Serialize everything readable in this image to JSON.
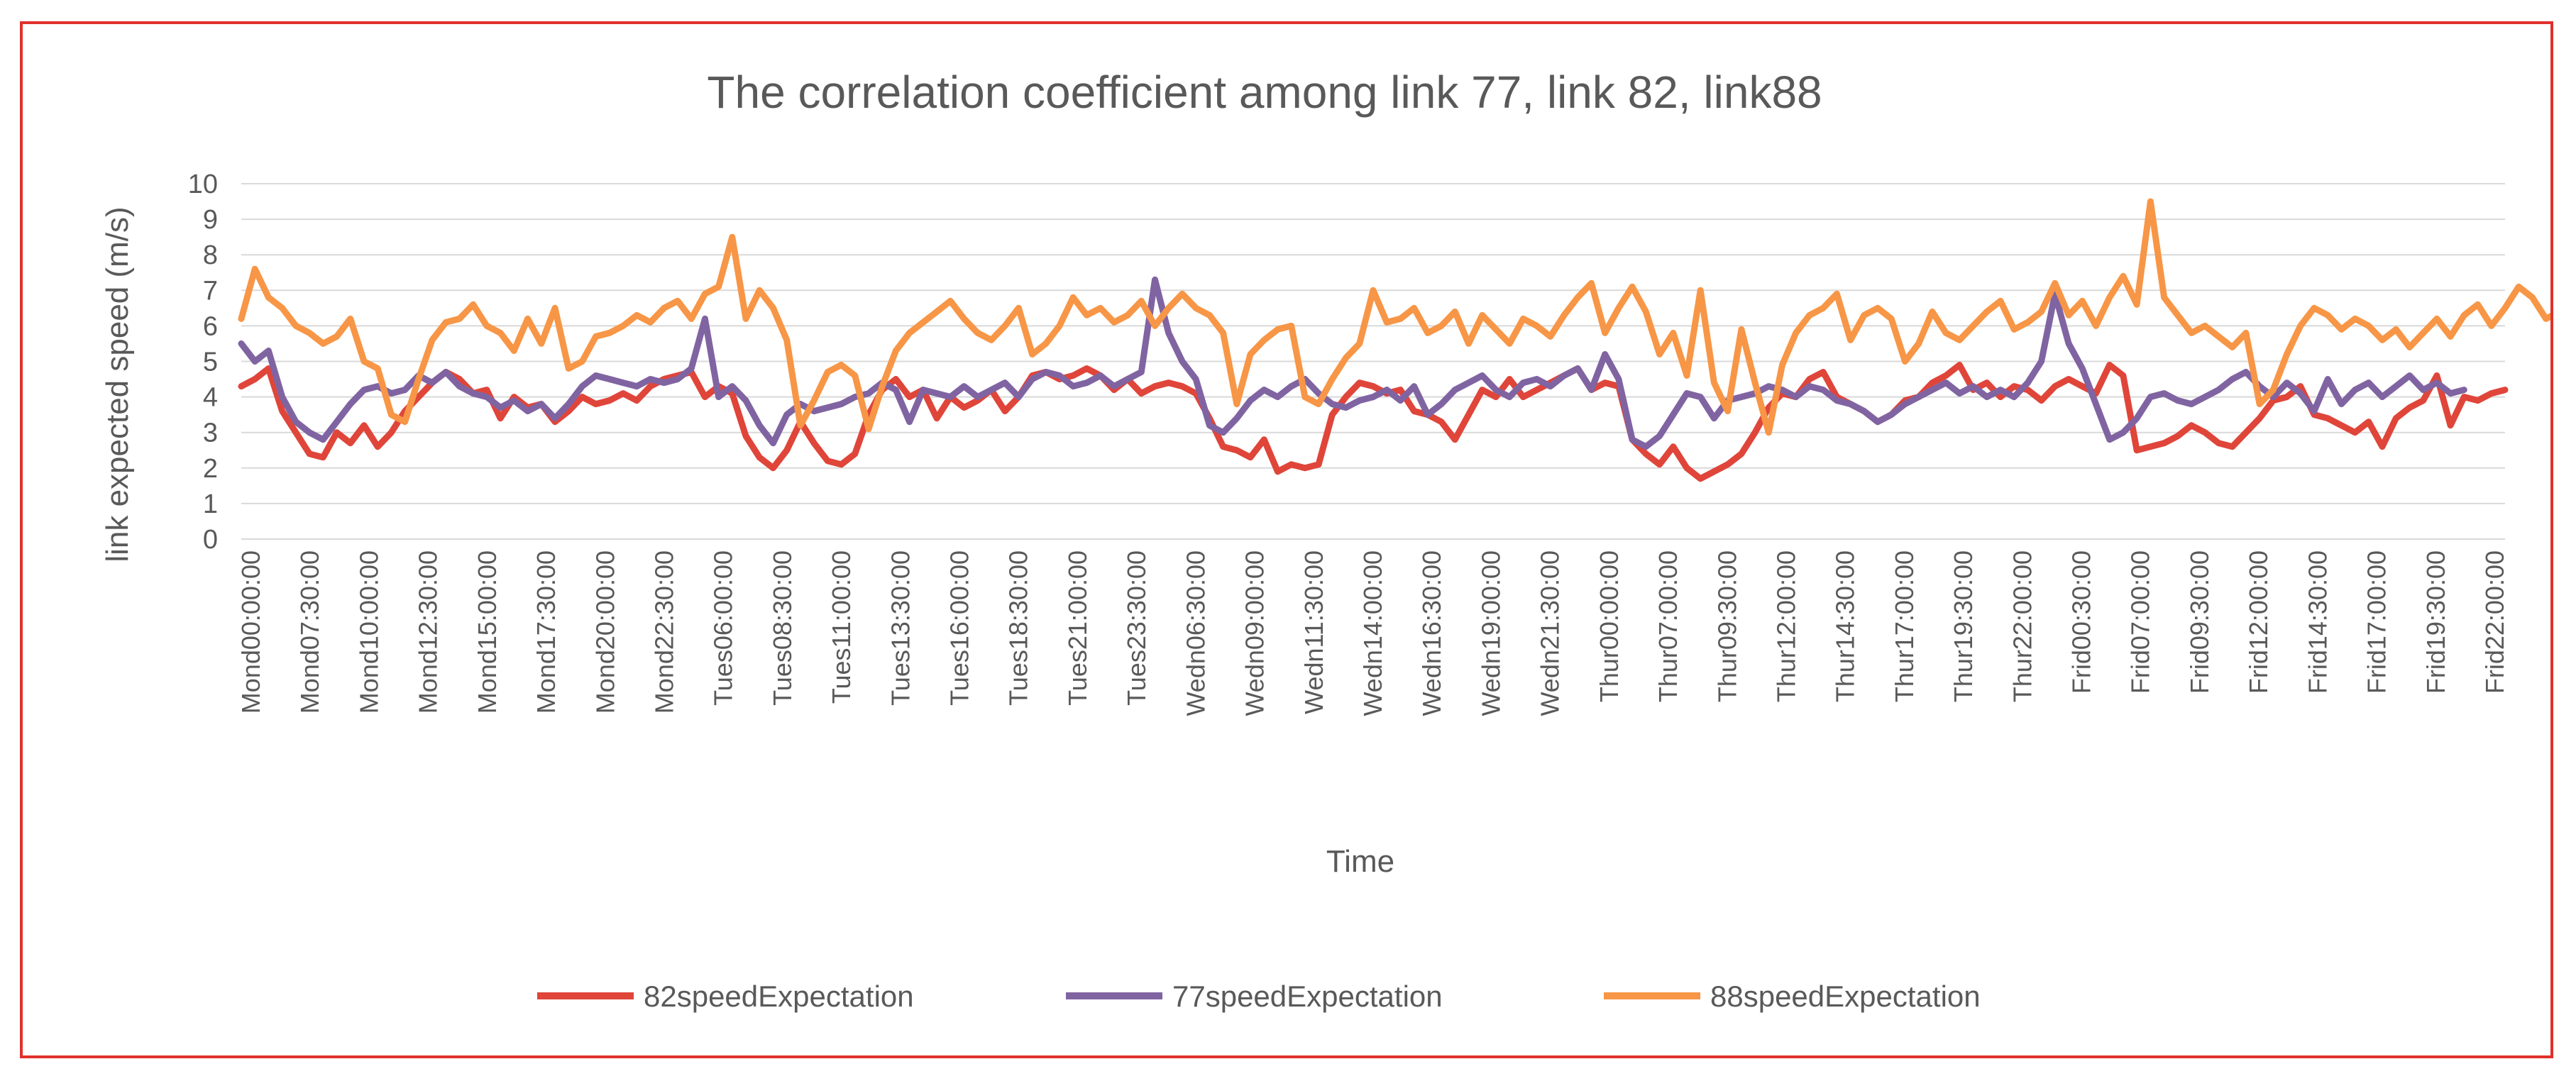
{
  "chart_data": {
    "type": "line",
    "title": "The correlation coefficient among link 77, link 82, link88",
    "xlabel": "Time",
    "ylabel": "link expected speed (m/s)",
    "ylim": [
      0,
      10
    ],
    "yticks": [
      0,
      1,
      2,
      3,
      4,
      5,
      6,
      7,
      8,
      9,
      10
    ],
    "grid": true,
    "legend_position": "bottom",
    "x_tick_labels": [
      "Mond00:00:00",
      "Mond07:30:00",
      "Mond10:00:00",
      "Mond12:30:00",
      "Mond15:00:00",
      "Mond17:30:00",
      "Mond20:00:00",
      "Mond22:30:00",
      "Tues06:00:00",
      "Tues08:30:00",
      "Tues11:00:00",
      "Tues13:30:00",
      "Tues16:00:00",
      "Tues18:30:00",
      "Tues21:00:00",
      "Tues23:30:00",
      "Wedn06:30:00",
      "Wedn09:00:00",
      "Wedn11:30:00",
      "Wedn14:00:00",
      "Wedn16:30:00",
      "Wedn19:00:00",
      "Wedn21:30:00",
      "Thur00:00:00",
      "Thur07:00:00",
      "Thur09:30:00",
      "Thur12:00:00",
      "Thur14:30:00",
      "Thur17:00:00",
      "Thur19:30:00",
      "Thur22:00:00",
      "Frid00:30:00",
      "Frid07:00:00",
      "Frid09:30:00",
      "Frid12:00:00",
      "Frid14:30:00",
      "Frid17:00:00",
      "Frid19:30:00",
      "Frid22:00:00"
    ],
    "series": [
      {
        "name": "82speedExpectation",
        "color": "#e0453a",
        "values": [
          4.3,
          4.5,
          4.8,
          3.6,
          3.0,
          2.4,
          2.3,
          3.0,
          2.7,
          3.2,
          2.6,
          3.0,
          3.6,
          4.0,
          4.4,
          4.7,
          4.5,
          4.1,
          4.2,
          3.4,
          4.0,
          3.7,
          3.8,
          3.3,
          3.6,
          4.0,
          3.8,
          3.9,
          4.1,
          3.9,
          4.3,
          4.5,
          4.6,
          4.7,
          4.0,
          4.3,
          4.1,
          2.9,
          2.3,
          2.0,
          2.5,
          3.3,
          2.7,
          2.2,
          2.1,
          2.4,
          3.5,
          4.2,
          4.5,
          4.0,
          4.2,
          3.4,
          4.0,
          3.7,
          3.9,
          4.2,
          3.6,
          4.0,
          4.6,
          4.7,
          4.5,
          4.6,
          4.8,
          4.6,
          4.2,
          4.5,
          4.1,
          4.3,
          4.4,
          4.3,
          4.1,
          3.4,
          2.6,
          2.5,
          2.3,
          2.8,
          1.9,
          2.1,
          2.0,
          2.1,
          3.5,
          4.0,
          4.4,
          4.3,
          4.1,
          4.2,
          3.6,
          3.5,
          3.3,
          2.8,
          3.5,
          4.2,
          4.0,
          4.5,
          4.0,
          4.2,
          4.4,
          4.6,
          4.8,
          4.2,
          4.4,
          4.3,
          2.8,
          2.4,
          2.1,
          2.6,
          2.0,
          1.7,
          1.9,
          2.1,
          2.4,
          3.0,
          3.7,
          4.1,
          4.0,
          4.5,
          4.7,
          4.0,
          3.8,
          3.6,
          3.3,
          3.5,
          3.9,
          4.0,
          4.4,
          4.6,
          4.9,
          4.2,
          4.4,
          4.0,
          4.3,
          4.2,
          3.9,
          4.3,
          4.5,
          4.3,
          4.1,
          4.9,
          4.6,
          2.5,
          2.6,
          2.7,
          2.9,
          3.2,
          3.0,
          2.7,
          2.6,
          3.0,
          3.4,
          3.9,
          4.0,
          4.3,
          3.5,
          3.4,
          3.2,
          3.0,
          3.3,
          2.6,
          3.4,
          3.7,
          3.9,
          4.6,
          3.2,
          4.0,
          3.9,
          4.1,
          4.2
        ]
      },
      {
        "name": "77speedExpectation",
        "color": "#8064a2",
        "values": [
          5.5,
          5.0,
          5.3,
          4.0,
          3.3,
          3.0,
          2.8,
          3.3,
          3.8,
          4.2,
          4.3,
          4.1,
          4.2,
          4.6,
          4.4,
          4.7,
          4.3,
          4.1,
          4.0,
          3.7,
          3.9,
          3.6,
          3.8,
          3.4,
          3.8,
          4.3,
          4.6,
          4.5,
          4.4,
          4.3,
          4.5,
          4.4,
          4.5,
          4.8,
          6.2,
          4.0,
          4.3,
          3.9,
          3.2,
          2.7,
          3.5,
          3.8,
          3.6,
          3.7,
          3.8,
          4.0,
          4.1,
          4.4,
          4.2,
          3.3,
          4.2,
          4.1,
          4.0,
          4.3,
          4.0,
          4.2,
          4.4,
          4.0,
          4.5,
          4.7,
          4.6,
          4.3,
          4.4,
          4.6,
          4.3,
          4.5,
          4.7,
          7.3,
          5.8,
          5.0,
          4.5,
          3.2,
          3.0,
          3.4,
          3.9,
          4.2,
          4.0,
          4.3,
          4.5,
          4.1,
          3.8,
          3.7,
          3.9,
          4.0,
          4.2,
          3.9,
          4.3,
          3.5,
          3.8,
          4.2,
          4.4,
          4.6,
          4.2,
          4.0,
          4.4,
          4.5,
          4.3,
          4.6,
          4.8,
          4.2,
          5.2,
          4.5,
          2.8,
          2.6,
          2.9,
          3.5,
          4.1,
          4.0,
          3.4,
          3.9,
          4.0,
          4.1,
          4.3,
          4.2,
          4.0,
          4.3,
          4.2,
          3.9,
          3.8,
          3.6,
          3.3,
          3.5,
          3.8,
          4.0,
          4.2,
          4.4,
          4.1,
          4.3,
          4.0,
          4.2,
          4.0,
          4.4,
          5.0,
          6.9,
          5.5,
          4.8,
          3.8,
          2.8,
          3.0,
          3.4,
          4.0,
          4.1,
          3.9,
          3.8,
          4.0,
          4.2,
          4.5,
          4.7,
          4.3,
          4.0,
          4.4,
          4.1,
          3.6,
          4.5,
          3.8,
          4.2,
          4.4,
          4.0,
          4.3,
          4.6,
          4.2,
          4.4,
          4.1,
          4.2
        ]
      },
      {
        "name": "88speedExpectation",
        "color": "#f79646",
        "values": [
          6.2,
          7.6,
          6.8,
          6.5,
          6.0,
          5.8,
          5.5,
          5.7,
          6.2,
          5.0,
          4.8,
          3.5,
          3.3,
          4.5,
          5.6,
          6.1,
          6.2,
          6.6,
          6.0,
          5.8,
          5.3,
          6.2,
          5.5,
          6.5,
          4.8,
          5.0,
          5.7,
          5.8,
          6.0,
          6.3,
          6.1,
          6.5,
          6.7,
          6.2,
          6.9,
          7.1,
          8.5,
          6.2,
          7.0,
          6.5,
          5.6,
          3.2,
          3.9,
          4.7,
          4.9,
          4.6,
          3.1,
          4.3,
          5.3,
          5.8,
          6.1,
          6.4,
          6.7,
          6.2,
          5.8,
          5.6,
          6.0,
          6.5,
          5.2,
          5.5,
          6.0,
          6.8,
          6.3,
          6.5,
          6.1,
          6.3,
          6.7,
          6.0,
          6.5,
          6.9,
          6.5,
          6.3,
          5.8,
          3.8,
          5.2,
          5.6,
          5.9,
          6.0,
          4.0,
          3.8,
          4.5,
          5.1,
          5.5,
          7.0,
          6.1,
          6.2,
          6.5,
          5.8,
          6.0,
          6.4,
          5.5,
          6.3,
          5.9,
          5.5,
          6.2,
          6.0,
          5.7,
          6.3,
          6.8,
          7.2,
          5.8,
          6.5,
          7.1,
          6.4,
          5.2,
          5.8,
          4.6,
          7.0,
          4.4,
          3.6,
          5.9,
          4.4,
          3.0,
          4.9,
          5.8,
          6.3,
          6.5,
          6.9,
          5.6,
          6.3,
          6.5,
          6.2,
          5.0,
          5.5,
          6.4,
          5.8,
          5.6,
          6.0,
          6.4,
          6.7,
          5.9,
          6.1,
          6.4,
          7.2,
          6.3,
          6.7,
          6.0,
          6.8,
          7.4,
          6.6,
          9.5,
          6.8,
          6.3,
          5.8,
          6.0,
          5.7,
          5.4,
          5.8,
          3.8,
          4.2,
          5.2,
          6.0,
          6.5,
          6.3,
          5.9,
          6.2,
          6.0,
          5.6,
          5.9,
          5.4,
          5.8,
          6.2,
          5.7,
          6.3,
          6.6,
          6.0,
          6.5,
          7.1,
          6.8,
          6.2,
          6.4
        ]
      }
    ]
  }
}
